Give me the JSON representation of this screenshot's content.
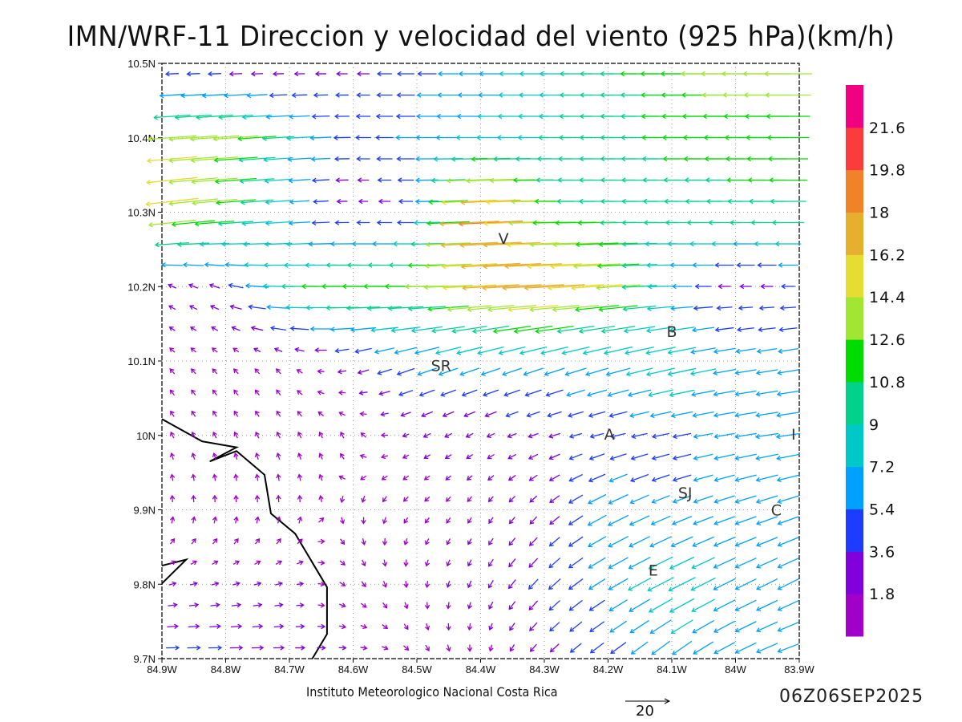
{
  "title": "IMN/WRF-11 Direccion y velocidad del viento (925 hPa)(km/h)",
  "credit": "Instituto Meteorologico Nacional Costa Rica",
  "timestamp": "06Z06SEP2025",
  "reference_vector": {
    "label": "20",
    "value": 20
  },
  "chart_data": {
    "type": "vector-field",
    "units": "km/h",
    "level": "925 hPa",
    "lon_ticks": [
      "84.9W",
      "84.8W",
      "84.7W",
      "84.6W",
      "84.5W",
      "84.4W",
      "84.3W",
      "84.2W",
      "84.1W",
      "84W",
      "83.9W"
    ],
    "lat_ticks": [
      "9.7N",
      "9.8N",
      "9.9N",
      "10N",
      "10.1N",
      "10.2N",
      "10.3N",
      "10.4N",
      "10.5N"
    ],
    "lon_range": [
      -84.9,
      -83.9
    ],
    "lat_range": [
      9.7,
      10.5
    ],
    "grid_lons": [
      -84.9,
      -84.8,
      -84.7,
      -84.6,
      -84.5,
      -84.4,
      -84.3,
      -84.2,
      -84.1,
      -84.0,
      -83.9
    ],
    "grid_lats_north_to_south": [
      10.5,
      10.4,
      10.3,
      10.2,
      10.1,
      10.0,
      9.9,
      9.8,
      9.7
    ],
    "u": [
      [
        -2,
        -2,
        -2,
        -3,
        -5,
        -6,
        -8,
        -10,
        -12,
        -14,
        -14
      ],
      [
        -14,
        -14,
        -8,
        -4,
        -6,
        -8,
        -9,
        -10,
        -11,
        -12,
        -12
      ],
      [
        -16,
        -12,
        -6,
        -2,
        -4,
        -20,
        -12,
        -10,
        -10,
        -10,
        -10
      ],
      [
        -2,
        -3,
        -10,
        -12,
        -12,
        -16,
        -18,
        -14,
        -6,
        -3,
        -4
      ],
      [
        -1,
        -1,
        -1,
        -3,
        -6,
        -6,
        -6,
        -7,
        -9,
        -6,
        -6
      ],
      [
        -0.5,
        -0.5,
        -0.5,
        -0.5,
        -2,
        -2,
        -3,
        -4,
        -5,
        -6,
        -7
      ],
      [
        0,
        0,
        0,
        0,
        -1,
        -1,
        -2,
        -6,
        -5,
        -6,
        -6
      ],
      [
        2,
        2,
        2,
        1,
        0,
        -1,
        -3,
        -5,
        -8,
        -6,
        -6
      ],
      [
        4,
        4,
        3,
        2,
        1,
        0,
        -2,
        -4,
        -5,
        -6,
        -6
      ]
    ],
    "v": [
      [
        0,
        0,
        0,
        0,
        0,
        0,
        0,
        0,
        0,
        0,
        0
      ],
      [
        -1,
        -1,
        -0.5,
        0,
        0,
        0,
        0,
        0,
        0,
        0,
        0
      ],
      [
        -2,
        -1,
        -0.5,
        0,
        0,
        -1,
        0,
        0,
        0,
        0,
        0
      ],
      [
        1,
        1,
        0,
        0,
        0,
        -1,
        -1,
        -1,
        0,
        0,
        0
      ],
      [
        1,
        1,
        1,
        -1,
        -2,
        -2,
        -2,
        -2,
        -2,
        -1,
        -1
      ],
      [
        1,
        1,
        1,
        1,
        -1,
        -1,
        -1,
        -1,
        -1,
        -1,
        -1
      ],
      [
        1.5,
        1.5,
        1.5,
        -1,
        -1,
        -1.5,
        -2,
        -3,
        -2,
        -2,
        -2
      ],
      [
        0.5,
        0.5,
        0.5,
        -1,
        -1.5,
        -2,
        -3,
        -3,
        -4,
        -3,
        -3
      ],
      [
        0,
        0,
        0,
        0,
        -1,
        -1.5,
        -2,
        -3,
        -4,
        -3,
        -2
      ]
    ],
    "colorbar": {
      "labels": [
        "1.8",
        "3.6",
        "5.4",
        "7.2",
        "9",
        "10.8",
        "12.6",
        "14.4",
        "16.2",
        "18",
        "19.8",
        "21.6"
      ],
      "thresholds": [
        1.8,
        3.6,
        5.4,
        7.2,
        9,
        10.8,
        12.6,
        14.4,
        16.2,
        18,
        19.8,
        21.6
      ],
      "colors": [
        "#a000c8",
        "#8200dc",
        "#1e3cff",
        "#00a0ff",
        "#00c8c8",
        "#00d28c",
        "#00dc00",
        "#a0e632",
        "#e6dc32",
        "#e6af2d",
        "#f08228",
        "#fa3c3c",
        "#f00082"
      ]
    },
    "coastline": [
      [
        [
          -84.9,
          10.022
        ],
        [
          -84.837,
          9.992
        ],
        [
          -84.783,
          9.984
        ],
        [
          -84.825,
          9.965
        ],
        [
          -84.783,
          9.979
        ],
        [
          -84.739,
          9.947
        ],
        [
          -84.729,
          9.895
        ],
        [
          -84.691,
          9.868
        ],
        [
          -84.641,
          9.796
        ],
        [
          -84.641,
          9.733
        ],
        [
          -84.664,
          9.7
        ]
      ],
      [
        [
          -84.9,
          9.825
        ],
        [
          -84.862,
          9.833
        ],
        [
          -84.9,
          9.801
        ]
      ]
    ],
    "stations": [
      {
        "label": "V",
        "lon": -84.364,
        "lat": 10.265
      },
      {
        "label": "B",
        "lon": -84.1,
        "lat": 10.14
      },
      {
        "label": "SR",
        "lon": -84.462,
        "lat": 10.094
      },
      {
        "label": "A",
        "lon": -84.198,
        "lat": 10.002
      },
      {
        "label": "I",
        "lon": -83.909,
        "lat": 10.002
      },
      {
        "label": "SJ",
        "lon": -84.079,
        "lat": 9.923
      },
      {
        "label": "C",
        "lon": -83.936,
        "lat": 9.9
      },
      {
        "label": "E",
        "lon": -84.129,
        "lat": 9.819
      }
    ]
  }
}
